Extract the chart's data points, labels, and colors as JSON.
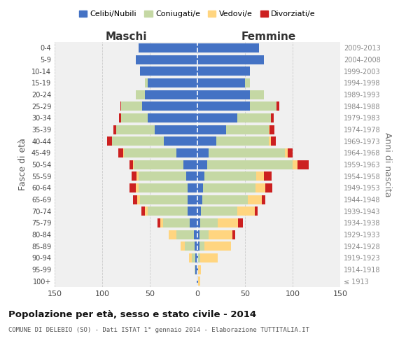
{
  "age_groups": [
    "100+",
    "95-99",
    "90-94",
    "85-89",
    "80-84",
    "75-79",
    "70-74",
    "65-69",
    "60-64",
    "55-59",
    "50-54",
    "45-49",
    "40-44",
    "35-39",
    "30-34",
    "25-29",
    "20-24",
    "15-19",
    "10-14",
    "5-9",
    "0-4"
  ],
  "birth_years": [
    "≤ 1913",
    "1914-1918",
    "1919-1923",
    "1924-1928",
    "1929-1933",
    "1934-1938",
    "1939-1943",
    "1944-1948",
    "1949-1953",
    "1954-1958",
    "1959-1963",
    "1964-1968",
    "1969-1973",
    "1974-1978",
    "1979-1983",
    "1984-1988",
    "1989-1993",
    "1994-1998",
    "1999-2003",
    "2004-2008",
    "2009-2013"
  ],
  "maschi": {
    "celibi": [
      1,
      2,
      2,
      3,
      4,
      8,
      10,
      10,
      10,
      12,
      15,
      22,
      35,
      45,
      52,
      58,
      55,
      52,
      60,
      65,
      62
    ],
    "coniugati": [
      0,
      1,
      4,
      10,
      18,
      28,
      42,
      50,
      52,
      50,
      52,
      55,
      55,
      40,
      28,
      22,
      10,
      3,
      0,
      0,
      0
    ],
    "vedovi": [
      0,
      0,
      3,
      5,
      8,
      3,
      3,
      3,
      3,
      2,
      1,
      1,
      0,
      0,
      0,
      0,
      0,
      0,
      0,
      0,
      0
    ],
    "divorziati": [
      0,
      0,
      0,
      0,
      0,
      3,
      4,
      5,
      6,
      5,
      3,
      5,
      5,
      3,
      2,
      1,
      0,
      0,
      0,
      0,
      0
    ]
  },
  "femmine": {
    "nubili": [
      1,
      1,
      1,
      2,
      2,
      3,
      4,
      5,
      6,
      7,
      10,
      12,
      20,
      30,
      42,
      55,
      55,
      50,
      55,
      70,
      65
    ],
    "coniugate": [
      0,
      0,
      2,
      5,
      10,
      18,
      38,
      48,
      55,
      55,
      90,
      80,
      55,
      45,
      35,
      28,
      15,
      5,
      0,
      0,
      0
    ],
    "vedove": [
      2,
      3,
      18,
      28,
      25,
      22,
      18,
      15,
      10,
      8,
      5,
      3,
      2,
      1,
      0,
      0,
      0,
      0,
      0,
      0,
      0
    ],
    "divorziate": [
      0,
      0,
      0,
      0,
      3,
      5,
      3,
      3,
      8,
      8,
      12,
      5,
      5,
      5,
      3,
      3,
      0,
      0,
      0,
      0,
      0
    ]
  },
  "colors": {
    "celibi": "#4472C4",
    "coniugati": "#C5D8A4",
    "vedovi": "#FFD580",
    "divorziati": "#CC2020"
  },
  "title": "Popolazione per età, sesso e stato civile - 2014",
  "subtitle": "COMUNE DI DELEBIO (SO) - Dati ISTAT 1° gennaio 2014 - Elaborazione TUTTITALIA.IT",
  "maschi_label": "Maschi",
  "femmine_label": "Femmine",
  "ylabel_left": "Fasce di età",
  "ylabel_right": "Anni di nascita",
  "xlim": 150,
  "bg_color": "#f0f0f0",
  "grid_color": "#cccccc"
}
